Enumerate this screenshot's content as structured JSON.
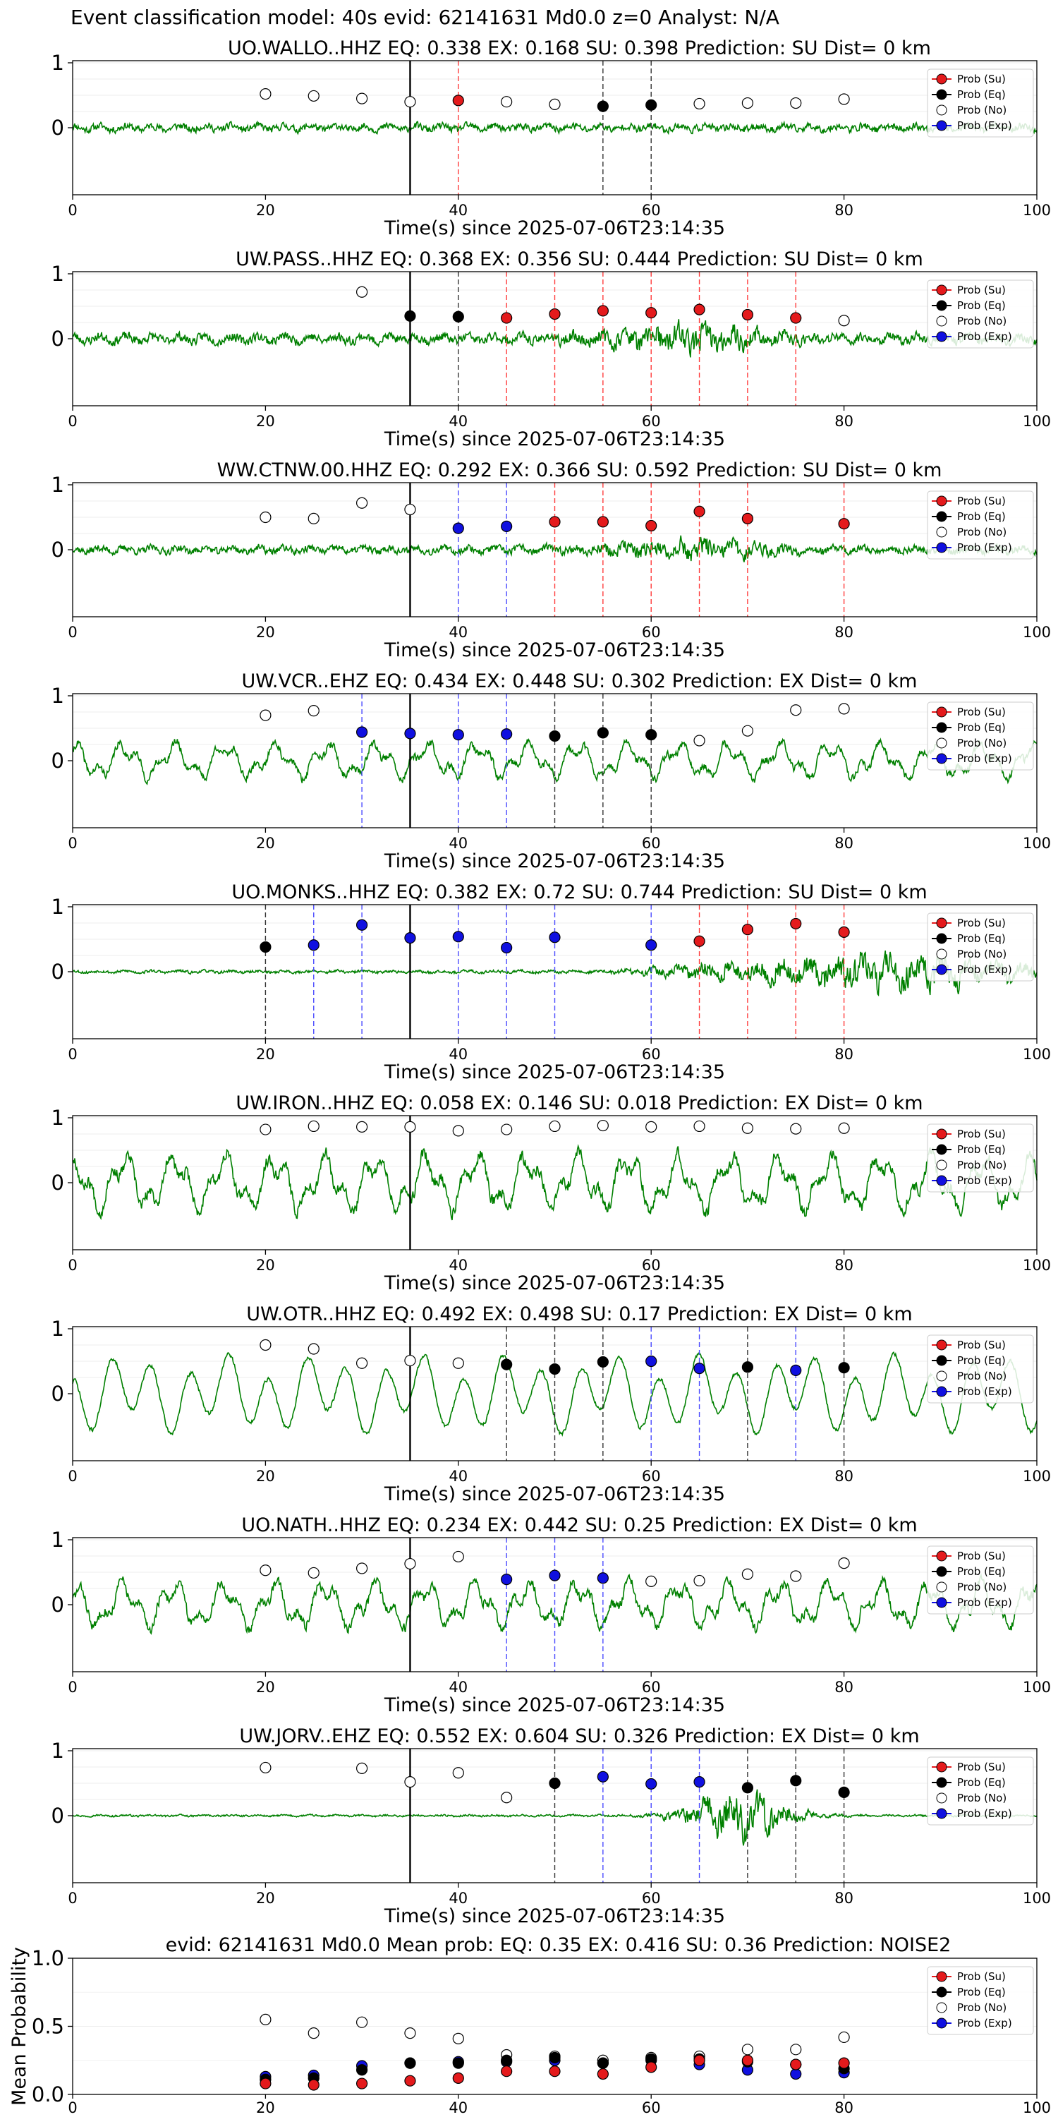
{
  "figure": {
    "suptitle": "Event classification model: 40s evid: 62141631 Md0.0 z=0 Analyst: N/A"
  },
  "colors": {
    "waveform": "#008000",
    "su_marker": "#e41a1c",
    "eq_marker": "#000000",
    "no_marker": "#ffffff",
    "exp_marker": "#1010e0",
    "su_line": "#ff3b3b",
    "eq_line": "#333333",
    "exp_line": "#4a4aff",
    "onset_line": "#000000"
  },
  "legend": {
    "labels": [
      "Prob (Su)",
      "Prob (Eq)",
      "Prob (No)",
      "Prob (Exp)"
    ],
    "placement": "top-right"
  },
  "chart_data": [
    {
      "type": "line",
      "station": "UO.WALLO..HHZ",
      "title": "UO.WALLO..HHZ   EQ: 0.338  EX: 0.168  SU: 0.398   Prediction: SU    Dist= 0 km",
      "xlabel": "Time(s) since 2025-07-06T23:14:35",
      "xlim": [
        0,
        100
      ],
      "xticks": [
        0,
        20,
        40,
        60,
        80,
        100
      ],
      "ytick_labels": [
        "1",
        "0"
      ],
      "onset_s": 35,
      "waveform": {
        "amplitude": 0.12,
        "character": "mixed",
        "seed": 11
      },
      "points": [
        {
          "t": 20,
          "cls": "no",
          "p": 0.52
        },
        {
          "t": 25,
          "cls": "no",
          "p": 0.49
        },
        {
          "t": 30,
          "cls": "no",
          "p": 0.45
        },
        {
          "t": 35,
          "cls": "no",
          "p": 0.4
        },
        {
          "t": 40,
          "cls": "su",
          "p": 0.42
        },
        {
          "t": 45,
          "cls": "no",
          "p": 0.4
        },
        {
          "t": 50,
          "cls": "no",
          "p": 0.36
        },
        {
          "t": 55,
          "cls": "eq",
          "p": 0.33
        },
        {
          "t": 60,
          "cls": "eq",
          "p": 0.35
        },
        {
          "t": 65,
          "cls": "no",
          "p": 0.37
        },
        {
          "t": 70,
          "cls": "no",
          "p": 0.38
        },
        {
          "t": 75,
          "cls": "no",
          "p": 0.38
        },
        {
          "t": 80,
          "cls": "no",
          "p": 0.44
        }
      ]
    },
    {
      "type": "line",
      "station": "UW.PASS..HHZ",
      "title": "UW.PASS..HHZ   EQ: 0.368  EX: 0.356  SU: 0.444   Prediction: SU    Dist= 0 km",
      "xlabel": "Time(s) since 2025-07-06T23:14:35",
      "xlim": [
        0,
        100
      ],
      "xticks": [
        0,
        20,
        40,
        60,
        80,
        100
      ],
      "ytick_labels": [
        "1",
        "0"
      ],
      "onset_s": 35,
      "waveform": {
        "amplitude": 0.28,
        "character": "burst",
        "seed": 23
      },
      "points": [
        {
          "t": 30,
          "cls": "no",
          "p": 0.72
        },
        {
          "t": 35,
          "cls": "eq",
          "p": 0.35
        },
        {
          "t": 40,
          "cls": "eq",
          "p": 0.34
        },
        {
          "t": 45,
          "cls": "su",
          "p": 0.32
        },
        {
          "t": 50,
          "cls": "su",
          "p": 0.38
        },
        {
          "t": 55,
          "cls": "su",
          "p": 0.43
        },
        {
          "t": 60,
          "cls": "su",
          "p": 0.4
        },
        {
          "t": 65,
          "cls": "su",
          "p": 0.45
        },
        {
          "t": 70,
          "cls": "su",
          "p": 0.37
        },
        {
          "t": 75,
          "cls": "su",
          "p": 0.32
        },
        {
          "t": 80,
          "cls": "no",
          "p": 0.28
        }
      ]
    },
    {
      "type": "line",
      "station": "WW.CTNW.00.HHZ",
      "title": "WW.CTNW.00.HHZ   EQ: 0.292  EX: 0.366  SU: 0.592   Prediction: SU    Dist= 0 km",
      "xlabel": "Time(s) since 2025-07-06T23:14:35",
      "xlim": [
        0,
        100
      ],
      "xticks": [
        0,
        20,
        40,
        60,
        80,
        100
      ],
      "ytick_labels": [
        "1",
        "0"
      ],
      "onset_s": 35,
      "waveform": {
        "amplitude": 0.22,
        "character": "burst",
        "seed": 37
      },
      "points": [
        {
          "t": 20,
          "cls": "no",
          "p": 0.5
        },
        {
          "t": 25,
          "cls": "no",
          "p": 0.48
        },
        {
          "t": 30,
          "cls": "no",
          "p": 0.72
        },
        {
          "t": 35,
          "cls": "no",
          "p": 0.62
        },
        {
          "t": 40,
          "cls": "exp",
          "p": 0.33
        },
        {
          "t": 45,
          "cls": "exp",
          "p": 0.36
        },
        {
          "t": 50,
          "cls": "su",
          "p": 0.43
        },
        {
          "t": 55,
          "cls": "su",
          "p": 0.43
        },
        {
          "t": 60,
          "cls": "su",
          "p": 0.37
        },
        {
          "t": 65,
          "cls": "su",
          "p": 0.59
        },
        {
          "t": 70,
          "cls": "su",
          "p": 0.48
        },
        {
          "t": 80,
          "cls": "su",
          "p": 0.4
        }
      ]
    },
    {
      "type": "line",
      "station": "UW.VCR..EHZ",
      "title": "UW.VCR..EHZ   EQ: 0.434  EX: 0.448  SU: 0.302   Prediction: EX    Dist= 0 km",
      "xlabel": "Time(s) since 2025-07-06T23:14:35",
      "xlim": [
        0,
        100
      ],
      "xticks": [
        0,
        20,
        40,
        60,
        80,
        100
      ],
      "ytick_labels": [
        "1",
        "0"
      ],
      "onset_s": 35,
      "waveform": {
        "amplitude": 0.35,
        "character": "lowfreq",
        "seed": 41
      },
      "points": [
        {
          "t": 20,
          "cls": "no",
          "p": 0.7
        },
        {
          "t": 25,
          "cls": "no",
          "p": 0.77
        },
        {
          "t": 30,
          "cls": "exp",
          "p": 0.44
        },
        {
          "t": 35,
          "cls": "exp",
          "p": 0.42
        },
        {
          "t": 40,
          "cls": "exp",
          "p": 0.4
        },
        {
          "t": 45,
          "cls": "exp",
          "p": 0.41
        },
        {
          "t": 50,
          "cls": "eq",
          "p": 0.38
        },
        {
          "t": 55,
          "cls": "eq",
          "p": 0.43
        },
        {
          "t": 60,
          "cls": "eq",
          "p": 0.4
        },
        {
          "t": 65,
          "cls": "no",
          "p": 0.31
        },
        {
          "t": 70,
          "cls": "no",
          "p": 0.46
        },
        {
          "t": 75,
          "cls": "no",
          "p": 0.78
        },
        {
          "t": 80,
          "cls": "no",
          "p": 0.8
        }
      ]
    },
    {
      "type": "line",
      "station": "UO.MONKS..HHZ",
      "title": "UO.MONKS..HHZ   EQ: 0.382  EX: 0.72  SU: 0.744   Prediction: SU    Dist= 0 km",
      "xlabel": "Time(s) since 2025-07-06T23:14:35",
      "xlim": [
        0,
        100
      ],
      "xticks": [
        0,
        20,
        40,
        60,
        80,
        100
      ],
      "ytick_labels": [
        "1",
        "0"
      ],
      "onset_s": 35,
      "waveform": {
        "amplitude": 0.4,
        "character": "late",
        "seed": 53
      },
      "points": [
        {
          "t": 20,
          "cls": "eq",
          "p": 0.38
        },
        {
          "t": 25,
          "cls": "exp",
          "p": 0.41
        },
        {
          "t": 30,
          "cls": "exp",
          "p": 0.72
        },
        {
          "t": 35,
          "cls": "exp",
          "p": 0.52
        },
        {
          "t": 40,
          "cls": "exp",
          "p": 0.54
        },
        {
          "t": 45,
          "cls": "exp",
          "p": 0.37
        },
        {
          "t": 50,
          "cls": "exp",
          "p": 0.53
        },
        {
          "t": 60,
          "cls": "exp",
          "p": 0.41
        },
        {
          "t": 65,
          "cls": "su",
          "p": 0.47
        },
        {
          "t": 70,
          "cls": "su",
          "p": 0.65
        },
        {
          "t": 75,
          "cls": "su",
          "p": 0.74
        },
        {
          "t": 80,
          "cls": "su",
          "p": 0.61
        }
      ]
    },
    {
      "type": "line",
      "station": "UW.IRON..HHZ",
      "title": "UW.IRON..HHZ   EQ: 0.058  EX: 0.146  SU: 0.018   Prediction: EX    Dist= 0 km",
      "xlabel": "Time(s) since 2025-07-06T23:14:35",
      "xlim": [
        0,
        100
      ],
      "xticks": [
        0,
        20,
        40,
        60,
        80,
        100
      ],
      "ytick_labels": [
        "1",
        "0"
      ],
      "onset_s": 35,
      "waveform": {
        "amplitude": 0.55,
        "character": "lowfreq",
        "seed": 67
      },
      "points": [
        {
          "t": 20,
          "cls": "no",
          "p": 0.82
        },
        {
          "t": 25,
          "cls": "no",
          "p": 0.87
        },
        {
          "t": 30,
          "cls": "no",
          "p": 0.86
        },
        {
          "t": 35,
          "cls": "no",
          "p": 0.86
        },
        {
          "t": 40,
          "cls": "no",
          "p": 0.8
        },
        {
          "t": 45,
          "cls": "no",
          "p": 0.82
        },
        {
          "t": 50,
          "cls": "no",
          "p": 0.87
        },
        {
          "t": 55,
          "cls": "no",
          "p": 0.88
        },
        {
          "t": 60,
          "cls": "no",
          "p": 0.86
        },
        {
          "t": 65,
          "cls": "no",
          "p": 0.87
        },
        {
          "t": 70,
          "cls": "no",
          "p": 0.84
        },
        {
          "t": 75,
          "cls": "no",
          "p": 0.83
        },
        {
          "t": 80,
          "cls": "no",
          "p": 0.84
        }
      ]
    },
    {
      "type": "line",
      "station": "UW.OTR..HHZ",
      "title": "UW.OTR..HHZ   EQ: 0.492  EX: 0.498  SU: 0.17   Prediction: EX    Dist= 0 km",
      "xlabel": "Time(s) since 2025-07-06T23:14:35",
      "xlim": [
        0,
        100
      ],
      "xticks": [
        0,
        20,
        40,
        60,
        80,
        100
      ],
      "ytick_labels": [
        "1",
        "0"
      ],
      "onset_s": 35,
      "waveform": {
        "amplitude": 0.55,
        "character": "smooth",
        "seed": 71
      },
      "points": [
        {
          "t": 20,
          "cls": "no",
          "p": 0.75
        },
        {
          "t": 25,
          "cls": "no",
          "p": 0.69
        },
        {
          "t": 30,
          "cls": "no",
          "p": 0.47
        },
        {
          "t": 35,
          "cls": "no",
          "p": 0.51
        },
        {
          "t": 40,
          "cls": "no",
          "p": 0.47
        },
        {
          "t": 45,
          "cls": "eq",
          "p": 0.45
        },
        {
          "t": 50,
          "cls": "eq",
          "p": 0.38
        },
        {
          "t": 55,
          "cls": "eq",
          "p": 0.49
        },
        {
          "t": 60,
          "cls": "exp",
          "p": 0.5
        },
        {
          "t": 65,
          "cls": "exp",
          "p": 0.39
        },
        {
          "t": 70,
          "cls": "eq",
          "p": 0.41
        },
        {
          "t": 75,
          "cls": "exp",
          "p": 0.36
        },
        {
          "t": 80,
          "cls": "eq",
          "p": 0.4
        }
      ]
    },
    {
      "type": "line",
      "station": "UO.NATH..HHZ",
      "title": "UO.NATH..HHZ   EQ: 0.234  EX: 0.442  SU: 0.25   Prediction: EX    Dist= 0 km",
      "xlabel": "Time(s) since 2025-07-06T23:14:35",
      "xlim": [
        0,
        100
      ],
      "xticks": [
        0,
        20,
        40,
        60,
        80,
        100
      ],
      "ytick_labels": [
        "1",
        "0"
      ],
      "onset_s": 35,
      "waveform": {
        "amplitude": 0.45,
        "character": "lowfreq",
        "seed": 83
      },
      "points": [
        {
          "t": 20,
          "cls": "no",
          "p": 0.53
        },
        {
          "t": 25,
          "cls": "no",
          "p": 0.49
        },
        {
          "t": 30,
          "cls": "no",
          "p": 0.56
        },
        {
          "t": 35,
          "cls": "no",
          "p": 0.63
        },
        {
          "t": 40,
          "cls": "no",
          "p": 0.74
        },
        {
          "t": 45,
          "cls": "exp",
          "p": 0.39
        },
        {
          "t": 50,
          "cls": "exp",
          "p": 0.45
        },
        {
          "t": 55,
          "cls": "exp",
          "p": 0.41
        },
        {
          "t": 60,
          "cls": "no",
          "p": 0.36
        },
        {
          "t": 65,
          "cls": "no",
          "p": 0.37
        },
        {
          "t": 70,
          "cls": "no",
          "p": 0.47
        },
        {
          "t": 75,
          "cls": "no",
          "p": 0.44
        },
        {
          "t": 80,
          "cls": "no",
          "p": 0.64
        }
      ]
    },
    {
      "type": "line",
      "station": "UW.JORV..EHZ",
      "title": "UW.JORV..EHZ   EQ: 0.552  EX: 0.604  SU: 0.326   Prediction: EX    Dist= 0 km",
      "xlabel": "Time(s) since 2025-07-06T23:14:35",
      "xlim": [
        0,
        100
      ],
      "xticks": [
        0,
        20,
        40,
        60,
        80,
        100
      ],
      "ytick_labels": [
        "1",
        "0"
      ],
      "onset_s": 35,
      "waveform": {
        "amplitude": 0.5,
        "character": "quiet",
        "seed": 97
      },
      "points": [
        {
          "t": 20,
          "cls": "no",
          "p": 0.74
        },
        {
          "t": 30,
          "cls": "no",
          "p": 0.73
        },
        {
          "t": 35,
          "cls": "no",
          "p": 0.52
        },
        {
          "t": 40,
          "cls": "no",
          "p": 0.66
        },
        {
          "t": 45,
          "cls": "no",
          "p": 0.28
        },
        {
          "t": 50,
          "cls": "eq",
          "p": 0.5
        },
        {
          "t": 55,
          "cls": "exp",
          "p": 0.6
        },
        {
          "t": 60,
          "cls": "exp",
          "p": 0.49
        },
        {
          "t": 65,
          "cls": "exp",
          "p": 0.52
        },
        {
          "t": 70,
          "cls": "eq",
          "p": 0.43
        },
        {
          "t": 75,
          "cls": "eq",
          "p": 0.54
        },
        {
          "t": 80,
          "cls": "eq",
          "p": 0.36
        }
      ]
    },
    {
      "type": "scatter",
      "title": "evid: 62141631  Md0.0   Mean prob:    EQ: 0.35  EX: 0.416  SU: 0.36   Prediction: NOISE2",
      "ylabel": "Mean Probability",
      "xlim": [
        0,
        100
      ],
      "ylim": [
        0,
        1
      ],
      "xticks": [
        0,
        20,
        40,
        60,
        80,
        100
      ],
      "yticks": [
        0.0,
        0.5,
        1.0
      ],
      "ytick_labels": [
        "0.0",
        "0.5",
        "1.0"
      ],
      "x": [
        20,
        25,
        30,
        35,
        40,
        45,
        50,
        55,
        60,
        65,
        70,
        75,
        80
      ],
      "series": [
        {
          "name": "Prob (No)",
          "cls": "no",
          "values": [
            0.55,
            0.45,
            0.53,
            0.45,
            0.41,
            0.29,
            0.28,
            0.25,
            0.27,
            0.28,
            0.33,
            0.33,
            0.42
          ]
        },
        {
          "name": "Prob (Exp)",
          "cls": "exp",
          "values": [
            0.13,
            0.14,
            0.21,
            0.23,
            0.24,
            0.24,
            0.25,
            0.23,
            0.25,
            0.22,
            0.18,
            0.15,
            0.16
          ]
        },
        {
          "name": "Prob (Eq)",
          "cls": "eq",
          "values": [
            0.11,
            0.12,
            0.18,
            0.23,
            0.23,
            0.25,
            0.27,
            0.23,
            0.26,
            0.26,
            0.24,
            0.22,
            0.19
          ]
        },
        {
          "name": "Prob (Su)",
          "cls": "su",
          "values": [
            0.08,
            0.07,
            0.08,
            0.1,
            0.12,
            0.17,
            0.17,
            0.15,
            0.2,
            0.25,
            0.25,
            0.22,
            0.23
          ]
        }
      ]
    }
  ]
}
